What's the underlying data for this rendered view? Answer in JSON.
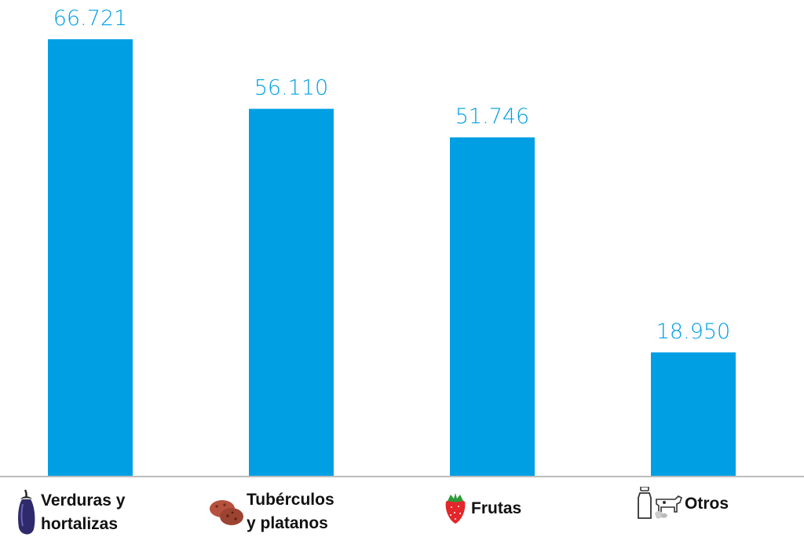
{
  "chart_data": {
    "type": "bar",
    "categories": [
      "Verduras y hortalizas",
      "Tubérculos y platanos",
      "Frutas",
      "Otros"
    ],
    "values": [
      66721,
      56110,
      51746,
      18950
    ],
    "value_labels": [
      "66.721",
      "56.110",
      "51.746",
      "18.950"
    ],
    "title": "",
    "xlabel": "",
    "ylabel": "",
    "ylim": [
      0,
      66721
    ],
    "grid": false,
    "colors": {
      "bar": "#009FE3",
      "value_label": "#009FE3",
      "axis": "#bdbdbd"
    }
  },
  "labels": [
    {
      "lines": [
        "Verduras y",
        "hortalizas"
      ],
      "icon": "eggplant-icon"
    },
    {
      "lines": [
        "Tubérculos",
        "y platanos"
      ],
      "icon": "potato-icon"
    },
    {
      "lines": [
        "Frutas"
      ],
      "icon": "strawberry-icon"
    },
    {
      "lines": [
        "Otros"
      ],
      "icon": "milk-cow-icon"
    }
  ]
}
